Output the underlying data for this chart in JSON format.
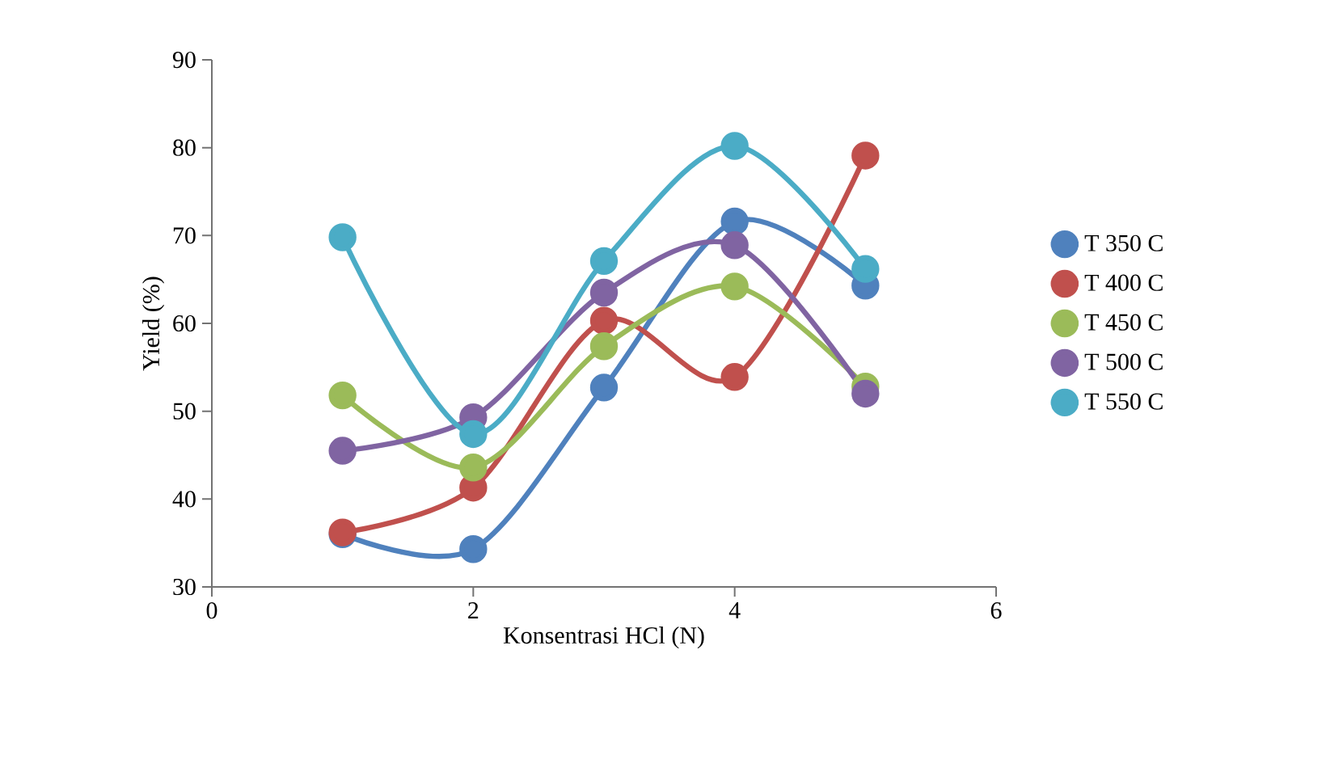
{
  "chart_data": {
    "type": "line",
    "xlabel": "Konsentrasi HCl (N)",
    "ylabel": "Yield (%)",
    "x": [
      1,
      2,
      3,
      4,
      5
    ],
    "series": [
      {
        "name": "T 350 C",
        "color": "#4f81bd",
        "values": [
          36.0,
          34.3,
          52.7,
          71.6,
          64.3
        ]
      },
      {
        "name": "T 400 C",
        "color": "#c0504d",
        "values": [
          36.2,
          41.3,
          60.3,
          53.9,
          79.1
        ]
      },
      {
        "name": "T 450 C",
        "color": "#9bbb59",
        "values": [
          51.8,
          43.6,
          57.4,
          64.2,
          52.8
        ]
      },
      {
        "name": "T 500 C",
        "color": "#8064a2",
        "values": [
          45.5,
          49.3,
          63.5,
          68.9,
          52.0
        ]
      },
      {
        "name": "T 550 C",
        "color": "#4bacc6",
        "values": [
          69.8,
          47.4,
          67.1,
          80.2,
          66.2
        ]
      }
    ],
    "xlim": [
      0,
      6
    ],
    "xticks": [
      0,
      2,
      4,
      6
    ],
    "ylim": [
      30,
      90
    ],
    "yticks": [
      30,
      40,
      50,
      60,
      70,
      80,
      90
    ],
    "grid": false,
    "legend": "right",
    "marker": "circle",
    "line_style": "solid"
  }
}
